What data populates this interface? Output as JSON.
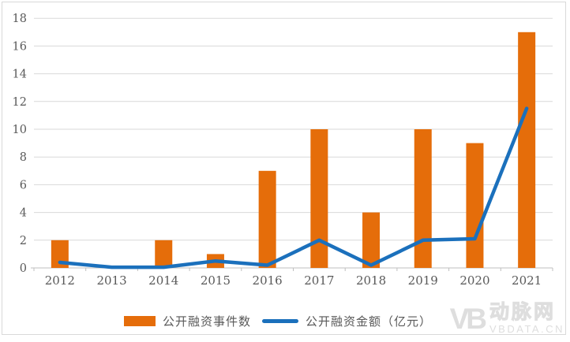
{
  "chart_data": {
    "type": "bar",
    "subtype": "bar-line-combo",
    "title": "",
    "categories": [
      "2012",
      "2013",
      "2014",
      "2015",
      "2016",
      "2017",
      "2018",
      "2019",
      "2020",
      "2021"
    ],
    "series": [
      {
        "name": "公开融资事件数",
        "type": "bar",
        "color": "#E56D0A",
        "values": [
          2,
          0,
          2,
          1,
          7,
          10,
          4,
          10,
          9,
          17
        ]
      },
      {
        "name": "公开融资金额（亿元）",
        "type": "line",
        "color": "#1B70BC",
        "values": [
          0.4,
          0.05,
          0.05,
          0.5,
          0.2,
          2,
          0.2,
          2,
          2.1,
          11.5
        ]
      }
    ],
    "xlabel": "",
    "ylabel": "",
    "ylim": [
      0,
      18
    ],
    "ytick_step": 2,
    "yticks": [
      0,
      2,
      4,
      6,
      8,
      10,
      12,
      14,
      16,
      18
    ],
    "grid": true,
    "legend_position": "bottom"
  },
  "colors": {
    "bar": "#E56D0A",
    "line": "#1B70BC",
    "axis_text": "#595959",
    "grid_line": "#D9D9D9",
    "axis_line": "#BFBFBF",
    "border": "#D9D9D9",
    "watermark": "#DEDEDE"
  },
  "watermark": {
    "logo": "VB",
    "brand": "动脉网",
    "site": "VBDATA.CN"
  }
}
